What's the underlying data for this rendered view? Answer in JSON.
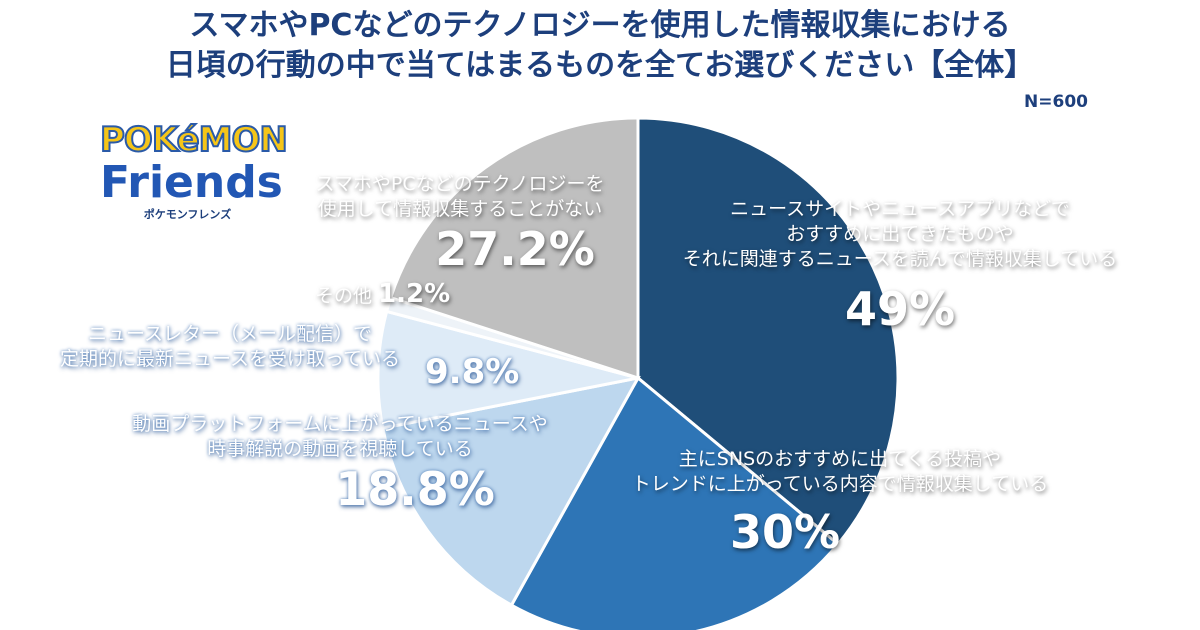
{
  "title_lines": [
    "スマホやPCなどのテクノロジーを使用した情報収集における",
    "日頃の行動の中で当てはまるものを全てお選びください【全体】"
  ],
  "sample_size": "N=600",
  "logo": {
    "line1": "POKéMON",
    "line2": "Friends",
    "line3": "ポケモンフレンズ"
  },
  "chart_data": {
    "type": "pie",
    "title": "スマホやPCなどのテクノロジーを使用した情報収集における日頃の行動の中で当てはまるものを全てお選びください【全体】",
    "note": "N=600",
    "slices": [
      {
        "label": "ニュースサイトやニュースアプリなどでおすすめに出てきたものやそれに関連するニュースを読んで情報収集している",
        "label_lines": [
          "ニュースサイトやニュースアプリなどで",
          "おすすめに出てきたものや",
          "それに関連するニュースを読んで情報収集している"
        ],
        "value": 49,
        "display": "49%",
        "color": "#1f4e79"
      },
      {
        "label": "主にSNSのおすすめに出てくる投稿やトレンドに上がっている内容で情報収集している",
        "label_lines": [
          "主にSNSのおすすめに出てくる投稿や",
          "トレンドに上がっている内容で情報収集している"
        ],
        "value": 30,
        "display": "30%",
        "color": "#2e75b6"
      },
      {
        "label": "動画プラットフォームに上がっているニュースや時事解説の動画を視聴している",
        "label_lines": [
          "動画プラットフォームに上がっているニュースや",
          "時事解説の動画を視聴している"
        ],
        "value": 18.8,
        "display": "18.8%",
        "color": "#bdd7ee"
      },
      {
        "label": "ニュースレター（メール配信）で定期的に最新ニュースを受け取っている",
        "label_lines": [
          "ニュースレター（メール配信）で",
          "定期的に最新ニュースを受け取っている"
        ],
        "value": 9.8,
        "display": "9.8%",
        "color": "#deebf7"
      },
      {
        "label": "その他",
        "label_lines": [
          "その他"
        ],
        "value": 1.2,
        "display": "1.2%",
        "color": "#eef3f8"
      },
      {
        "label": "スマホやPCなどのテクノロジーを使用して情報収集することがない",
        "label_lines": [
          "スマホやPCなどのテクノロジーを",
          "使用して情報収集することがない"
        ],
        "value": 27.2,
        "display": "27.2%",
        "color": "#bfbfbf"
      }
    ]
  }
}
